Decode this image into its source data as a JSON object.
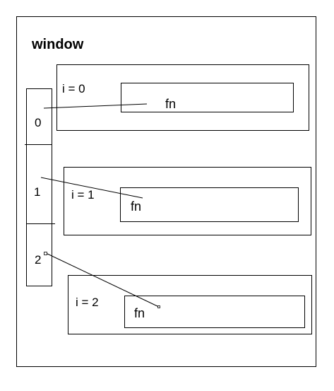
{
  "window": {
    "title": "window"
  },
  "array": {
    "cells": [
      "0",
      "1",
      "2"
    ]
  },
  "scopes": [
    {
      "label": "i = 0",
      "fn_label": "fn"
    },
    {
      "label": "i = 1",
      "fn_label": "fn"
    },
    {
      "label": "i = 2",
      "fn_label": "fn"
    }
  ],
  "colors": {
    "stroke": "#000000",
    "background": "#ffffff"
  }
}
